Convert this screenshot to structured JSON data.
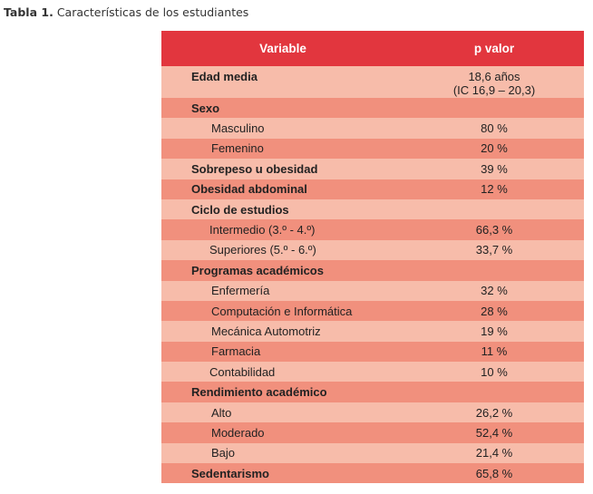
{
  "caption": {
    "label": "Tabla 1.",
    "text": "Características de los estudiantes"
  },
  "table": {
    "headers": {
      "variable": "Variable",
      "value": "p valor"
    },
    "rows": [
      {
        "label": "Edad media",
        "value": "18,6 años",
        "value2": "(IC 16,9 – 20,3)"
      },
      {
        "label": "Sexo",
        "value": ""
      },
      {
        "label": "Masculino",
        "value": "80 %"
      },
      {
        "label": "Femenino",
        "value": "20 %"
      },
      {
        "label": "Sobrepeso u obesidad",
        "value": "39 %"
      },
      {
        "label": "Obesidad abdominal",
        "value": "12 %"
      },
      {
        "label": "Ciclo de estudios",
        "value": ""
      },
      {
        "label": "Intermedio (3.º - 4.º)",
        "value": "66,3 %"
      },
      {
        "label": "Superiores (5.º - 6.º)",
        "value": "33,7 %"
      },
      {
        "label": "Programas académicos",
        "value": ""
      },
      {
        "label": "Enfermería",
        "value": "32 %"
      },
      {
        "label": "Computación e Informática",
        "value": "28 %"
      },
      {
        "label": "Mecánica Automotriz",
        "value": "19 %"
      },
      {
        "label": "Farmacia",
        "value": "11 %"
      },
      {
        "label": "Contabilidad",
        "value": "10 %"
      },
      {
        "label": "Rendimiento académico",
        "value": ""
      },
      {
        "label": "Alto",
        "value": "26,2 %"
      },
      {
        "label": "Moderado",
        "value": "52,4 %"
      },
      {
        "label": "Bajo",
        "value": "21,4 %"
      },
      {
        "label": "Sedentarismo",
        "value": "65,8 %"
      }
    ]
  }
}
